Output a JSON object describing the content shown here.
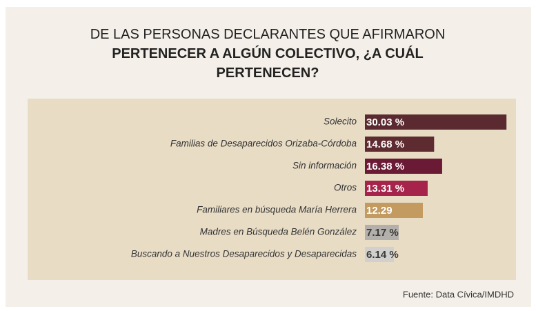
{
  "chart_data": {
    "type": "barh",
    "title": "DE LAS PERSONAS DECLARANTES QUE AFIRMARON",
    "title_emphasis": "PERTENECER A ALGÚN COLECTIVO, ¿A CUÁL PERTENECEN?",
    "categories": [
      "Solecito",
      "Familias de Desaparecidos Orizaba-Córdoba",
      "Sin información",
      "Otros",
      "Familiares en búsqueda María Herrera",
      "Madres en Búsqueda Belén González",
      "Buscando a Nuestros Desaparecidos y Desaparecidas"
    ],
    "series": [
      {
        "values": [
          30.03,
          14.68,
          16.38,
          13.31,
          12.29,
          7.17,
          6.14
        ],
        "value_labels": [
          "30.03 %",
          "14.68 %",
          "16.38 %",
          "13.31 %",
          "12.29",
          "7.17 %",
          "6.14 %"
        ],
        "colors": [
          "#5b2a30",
          "#5e2b30",
          "#6a1a35",
          "#a6244b",
          "#c39a5f",
          "#b3afaa",
          "#d2d0cd"
        ]
      }
    ],
    "xlim": [
      0,
      30
    ],
    "source": "Fuente: Data Cívica/IMDHD"
  }
}
